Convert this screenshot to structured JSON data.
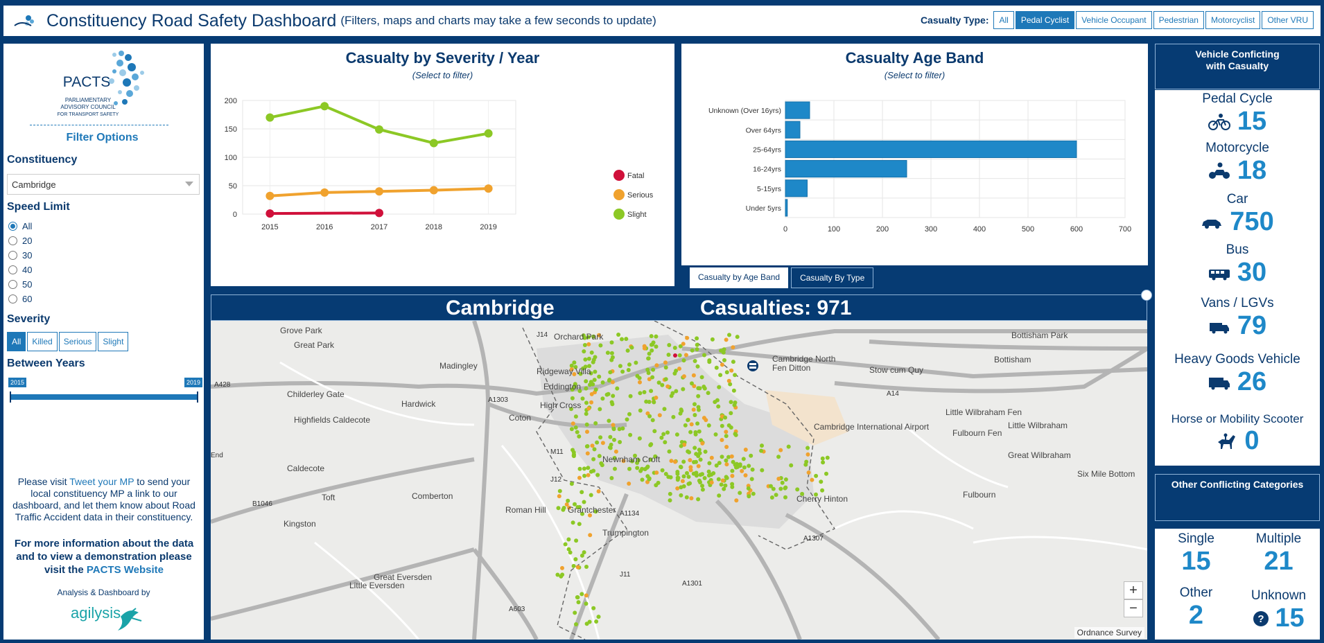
{
  "header": {
    "title": "Constituency Road Safety Dashboard",
    "subtitle": "(Filters, maps and charts may take a few seconds to update)",
    "casualty_type_label": "Casualty Type:",
    "casualty_types": [
      "All",
      "Pedal Cyclist",
      "Vehicle Occupant",
      "Pedestrian",
      "Motorcyclist",
      "Other VRU"
    ],
    "casualty_type_selected": "Pedal Cyclist"
  },
  "sidebar": {
    "logo_text": "PACTS",
    "logo_subtext": [
      "PARLIAMENTARY",
      "ADVISORY COUNCIL",
      "FOR TRANSPORT SAFETY"
    ],
    "filter_title": "Filter Options",
    "constituency_label": "Constituency",
    "constituency_value": "Cambridge",
    "speed_label": "Speed Limit",
    "speed_options": [
      "All",
      "20",
      "30",
      "40",
      "50",
      "60"
    ],
    "speed_selected": "All",
    "severity_label": "Severity",
    "severity_options": [
      "All",
      "Killed",
      "Serious",
      "Slight"
    ],
    "severity_selected": "All",
    "years_label": "Between Years",
    "year_from": "2015",
    "year_to": "2019",
    "visit_pre": "Please visit ",
    "visit_link": "Tweet your MP",
    "visit_post": " to send your local constituency MP a link to our dashboard, and let them know about Road Traffic Accident data in their constituency.",
    "more_pre": "For more information about the data and to view a demonstration please visit the ",
    "more_link": "PACTS Website",
    "analysis_by": "Analysis & Dashboard by",
    "agilysis": "agilysis"
  },
  "severity_chart": {
    "title": "Casualty by Severity / Year",
    "subtitle": "(Select to filter)"
  },
  "age_chart": {
    "title": "Casualty Age Band",
    "subtitle": "(Select to filter)"
  },
  "chart_data": [
    {
      "type": "line",
      "title": "Casualty by Severity / Year",
      "x": [
        "2015",
        "2016",
        "2017",
        "2018",
        "2019"
      ],
      "ylim": [
        0,
        200
      ],
      "yticks": [
        0,
        50,
        100,
        150,
        200
      ],
      "grid": true,
      "legend": "right",
      "series": [
        {
          "name": "Fatal",
          "color": "#d0103a",
          "values": [
            1,
            null,
            2,
            null,
            null
          ]
        },
        {
          "name": "Serious",
          "color": "#f0a22e",
          "values": [
            32,
            38,
            40,
            42,
            45
          ]
        },
        {
          "name": "Slight",
          "color": "#8cc825",
          "values": [
            170,
            190,
            149,
            125,
            142
          ]
        }
      ]
    },
    {
      "type": "bar",
      "orientation": "horizontal",
      "title": "Casualty Age Band",
      "categories": [
        "Unknown (Over 16yrs)",
        "Over 64yrs",
        "25-64yrs",
        "16-24yrs",
        "5-15yrs",
        "Under 5yrs"
      ],
      "values": [
        50,
        30,
        600,
        250,
        45,
        4
      ],
      "xlim": [
        0,
        700
      ],
      "xticks": [
        0,
        100,
        200,
        300,
        400,
        500,
        600,
        700
      ],
      "color": "#1e88c8",
      "grid": true
    }
  ],
  "chart_tabs": [
    "Casualty by Age Band",
    "Casualty By Type"
  ],
  "chart_tab_selected": "Casualty by Age Band",
  "map": {
    "city": "Cambridge",
    "casualties": "Casualties: 971",
    "attribution": "Ordnance Survey",
    "zoom_in": "+",
    "zoom_out": "−",
    "labels": [
      "Grove Park",
      "Great Park",
      "Orchard Park",
      "Madingley",
      "Ridgeway Villa",
      "Eddington",
      "Childerley Gate",
      "Hardwick",
      "High Cross",
      "Highfields Caldecote",
      "Coton",
      "Caldecote",
      "Comberton",
      "Toft",
      "Kingston",
      "Roman Hill",
      "Grantchester",
      "Newnham Croft",
      "Trumpington",
      "Great Eversden",
      "Little Eversden",
      "Fen Ditton",
      "Stow cum Quy",
      "Bottisham",
      "Little Wilbraham",
      "Great Wilbraham",
      "Fulbourn",
      "Cherry Hinton",
      "Six Mile Bottom",
      "Cambridge International Airport",
      "Little Wilbraham Fen",
      "Fulbourn Fen",
      "Bottisham Park",
      "Cambridge North",
      "A428",
      "A1303",
      "A14",
      "M11",
      "J12",
      "J14",
      "A603",
      "B1046",
      "A1134",
      "A1307",
      "A1301",
      "J11",
      "End"
    ]
  },
  "vehicle_conflicting": {
    "title_line1": "Vehicle Conficting",
    "title_line2": "with Casualty",
    "items": [
      {
        "label": "Pedal Cycle",
        "value": "15",
        "icon": "bicycle-icon"
      },
      {
        "label": "Motorcycle",
        "value": "18",
        "icon": "motorcycle-icon"
      },
      {
        "label": "Car",
        "value": "750",
        "icon": "car-icon"
      },
      {
        "label": "Bus",
        "value": "30",
        "icon": "bus-icon"
      },
      {
        "label": "Vans / LGVs",
        "value": "79",
        "icon": "van-icon"
      },
      {
        "label": "Heavy Goods Vehicle",
        "value": "26",
        "icon": "truck-icon"
      },
      {
        "label": "Horse or Mobility Scooter",
        "value": "0",
        "icon": "horse-icon"
      }
    ]
  },
  "other_conflicting": {
    "title": "Other Conflicting Categories",
    "items": [
      {
        "label": "Single",
        "value": "15"
      },
      {
        "label": "Multiple",
        "value": "21"
      },
      {
        "label": "Other",
        "value": "2"
      },
      {
        "label": "Unknown",
        "value": "15",
        "icon": "question-icon"
      }
    ]
  },
  "colors": {
    "navy": "#063b73",
    "accent": "#1e78b8",
    "value_blue": "#1e88c8",
    "fatal": "#d0103a",
    "serious": "#f0a22e",
    "slight": "#8cc825"
  }
}
